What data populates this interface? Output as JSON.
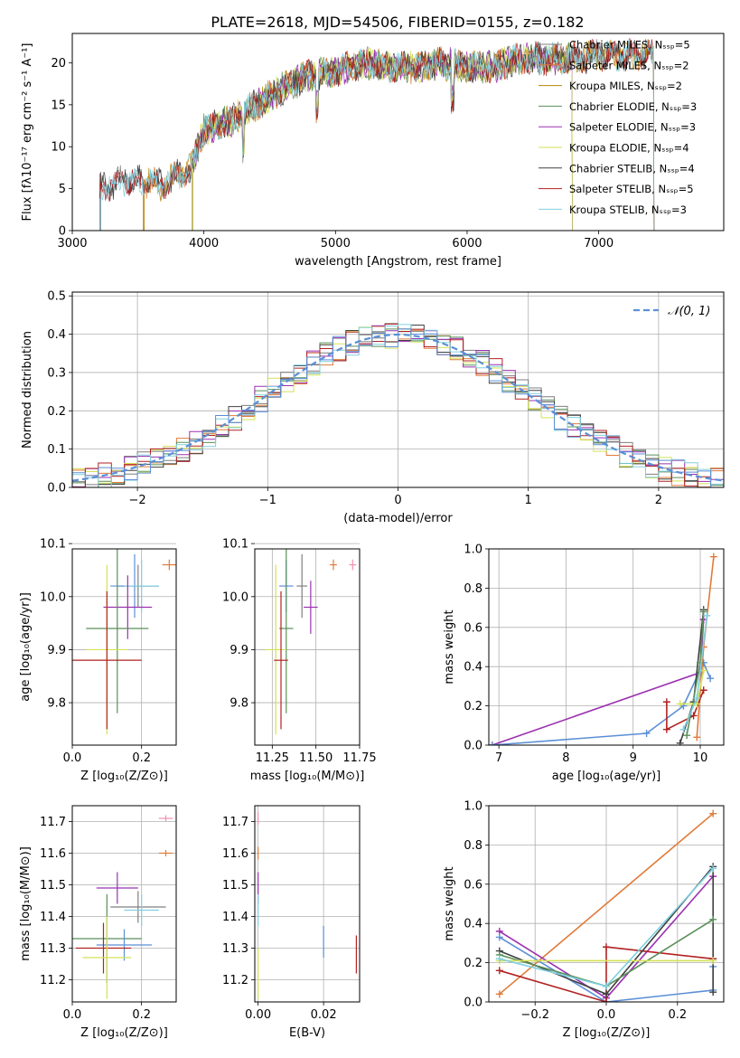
{
  "figure": {
    "title": "PLATE=2618, MJD=54506, FIBERID=0155, z=0.182"
  },
  "chart_data": [
    {
      "id": "spectrum",
      "type": "line",
      "xlabel": "wavelength [Angstrom, rest frame]",
      "ylabel": "Flux [fλ10⁻¹⁷ erg cm⁻² s⁻¹ A⁻¹]",
      "xlim": [
        3000,
        7950
      ],
      "ylim": [
        0,
        23.5
      ],
      "xticks": [
        3000,
        4000,
        5000,
        6000,
        7000
      ],
      "yticks": [
        0,
        5,
        10,
        15,
        20
      ],
      "legend_position": "right",
      "series": [
        {
          "name": "Chabrier MILES, Nₛₛₚ=5",
          "color": "#7f7f7f",
          "x_start": 3210,
          "x_end": 7420
        },
        {
          "name": "Salpeter MILES, Nₛₛₚ=2",
          "color": "#e07b39",
          "x_start": 3540,
          "x_end": 7420
        },
        {
          "name": "Kroupa MILES, Nₛₛₚ=2",
          "color": "#b8860b",
          "x_start": 3540,
          "x_end": 7420
        },
        {
          "name": "Chabrier ELODIE, Nₛₛₚ=3",
          "color": "#5a8f5a",
          "x_start": 3910,
          "x_end": 6800
        },
        {
          "name": "Salpeter ELODIE, Nₛₛₚ=3",
          "color": "#9b30b0",
          "x_start": 3910,
          "x_end": 6800
        },
        {
          "name": "Kroupa ELODIE, Nₛₛₚ=4",
          "color": "#d4e157",
          "x_start": 3910,
          "x_end": 6800
        },
        {
          "name": "Chabrier STELIB, Nₛₛₚ=4",
          "color": "#404040",
          "x_start": 3210,
          "x_end": 7420
        },
        {
          "name": "Salpeter STELIB, Nₛₛₚ=5",
          "color": "#b22222",
          "x_start": 3210,
          "x_end": 7420
        },
        {
          "name": "Kroupa STELIB, Nₛₛₚ=3",
          "color": "#80d0e0",
          "x_start": 3210,
          "x_end": 7420
        }
      ],
      "continuum": [
        [
          3210,
          5
        ],
        [
          3400,
          6
        ],
        [
          3700,
          5.5
        ],
        [
          3900,
          7.5
        ],
        [
          4000,
          12
        ],
        [
          4200,
          13
        ],
        [
          4400,
          15
        ],
        [
          4600,
          17
        ],
        [
          4800,
          18.5
        ],
        [
          5000,
          19
        ],
        [
          5200,
          20
        ],
        [
          5400,
          19.5
        ],
        [
          5600,
          19.5
        ],
        [
          5800,
          20
        ],
        [
          6000,
          19.5
        ],
        [
          6200,
          19.5
        ],
        [
          6400,
          20.5
        ],
        [
          6600,
          20.5
        ],
        [
          6800,
          20.5
        ],
        [
          7000,
          21
        ],
        [
          7200,
          21
        ],
        [
          7420,
          21
        ]
      ]
    },
    {
      "id": "residuals",
      "type": "histogram",
      "xlabel": "(data-model)/error",
      "ylabel": "Normed distribution",
      "xlim": [
        -2.5,
        2.5
      ],
      "ylim": [
        0,
        0.51
      ],
      "xticks": [
        -2,
        -1,
        0,
        1,
        2
      ],
      "yticks": [
        0.0,
        0.1,
        0.2,
        0.3,
        0.4,
        0.5
      ],
      "legend": [
        {
          "name": "𝒩(0, 1)",
          "style": "dashed",
          "color": "#5b8fd6"
        }
      ],
      "legend_position": "top-right",
      "grid": true,
      "bin_width": 0.1
    },
    {
      "id": "age_vs_Z",
      "type": "errorbar",
      "xlabel": "Z [log₁₀(Z/Z⊙)]",
      "ylabel": "age  [log₁₀(age/yr)]",
      "xlim": [
        0,
        0.3
      ],
      "ylim": [
        9.72,
        10.09
      ],
      "xticks": [
        0.0,
        0.2
      ],
      "yticks": [
        9.8,
        9.9,
        10.0,
        10.1
      ],
      "points": [
        {
          "color": "#e07b39",
          "x": 0.28,
          "y": 10.06,
          "xerr": 0.02,
          "yerr": 0.01
        },
        {
          "color": "#7f7f7f",
          "x": 0.19,
          "y": 10.02,
          "xerr": 0.06,
          "yerr": 0.04
        },
        {
          "color": "#5b8fd6",
          "x": 0.18,
          "y": 10.02,
          "xerr": 0.07,
          "yerr": 0.06
        },
        {
          "color": "#80d0e0",
          "x": 0.2,
          "y": 10.02,
          "xerr": 0.05,
          "yerr": 0.05
        },
        {
          "color": "#9b30b0",
          "x": 0.16,
          "y": 9.98,
          "xerr": 0.07,
          "yerr": 0.06
        },
        {
          "color": "#5a8f5a",
          "x": 0.13,
          "y": 9.94,
          "xerr": 0.09,
          "yerr": 0.16
        },
        {
          "color": "#d4e157",
          "x": 0.1,
          "y": 9.9,
          "xerr": 0.06,
          "yerr": 0.16
        },
        {
          "color": "#b22222",
          "x": 0.1,
          "y": 9.88,
          "xerr": 0.1,
          "yerr": 0.13
        }
      ]
    },
    {
      "id": "age_vs_mass",
      "type": "errorbar",
      "xlabel": "mass [log₁₀(M/M⊙)]",
      "ylabel": "",
      "xlim": [
        11.15,
        11.75
      ],
      "ylim": [
        9.72,
        10.09
      ],
      "xticks": [
        11.25,
        11.5,
        11.75
      ],
      "yticks": [
        9.8,
        9.9,
        10.0,
        10.1
      ],
      "points": [
        {
          "color": "#e07b39",
          "x": 11.6,
          "y": 10.06,
          "xerr": 0.02,
          "yerr": 0.01
        },
        {
          "color": "#f48fb1",
          "x": 11.71,
          "y": 10.06,
          "xerr": 0.02,
          "yerr": 0.01
        },
        {
          "color": "#5b8fd6",
          "x": 11.33,
          "y": 10.02,
          "xerr": 0.04,
          "yerr": 0.05
        },
        {
          "color": "#7f7f7f",
          "x": 11.42,
          "y": 10.02,
          "xerr": 0.03,
          "yerr": 0.06
        },
        {
          "color": "#9b30b0",
          "x": 11.47,
          "y": 9.98,
          "xerr": 0.04,
          "yerr": 0.05
        },
        {
          "color": "#5a8f5a",
          "x": 11.33,
          "y": 9.94,
          "xerr": 0.04,
          "yerr": 0.16
        },
        {
          "color": "#d4e157",
          "x": 11.27,
          "y": 9.9,
          "xerr": 0.06,
          "yerr": 0.16
        },
        {
          "color": "#b22222",
          "x": 11.3,
          "y": 9.88,
          "xerr": 0.04,
          "yerr": 0.13
        }
      ]
    },
    {
      "id": "weight_vs_age",
      "type": "line",
      "xlabel": "age  [log₁₀(age/yr)]",
      "ylabel": "mass weight",
      "xlim": [
        6.85,
        10.35
      ],
      "ylim": [
        0,
        1.0
      ],
      "xticks": [
        7,
        8,
        9,
        10
      ],
      "yticks": [
        0.0,
        0.2,
        0.4,
        0.6,
        0.8,
        1.0
      ],
      "series": [
        {
          "color": "#9b30b0",
          "points": [
            [
              6.9,
              0.0
            ],
            [
              10.0,
              0.37
            ],
            [
              10.05,
              0.64
            ]
          ]
        },
        {
          "color": "#5b8fd6",
          "points": [
            [
              6.9,
              0.0
            ],
            [
              9.2,
              0.06
            ],
            [
              9.75,
              0.2
            ],
            [
              10.05,
              0.42
            ],
            [
              10.15,
              0.34
            ]
          ]
        },
        {
          "color": "#e07b39",
          "points": [
            [
              9.95,
              0.04
            ],
            [
              10.05,
              0.5
            ],
            [
              10.2,
              0.96
            ]
          ]
        },
        {
          "color": "#b22222",
          "points": [
            [
              9.5,
              0.22
            ],
            [
              9.5,
              0.08
            ],
            [
              9.9,
              0.15
            ],
            [
              10.05,
              0.28
            ]
          ]
        },
        {
          "color": "#404040",
          "points": [
            [
              9.7,
              0.01
            ],
            [
              9.9,
              0.22
            ],
            [
              10.05,
              0.69
            ]
          ]
        },
        {
          "color": "#5a8f5a",
          "points": [
            [
              9.8,
              0.05
            ],
            [
              10.0,
              0.42
            ],
            [
              10.05,
              0.68
            ]
          ]
        },
        {
          "color": "#d4e157",
          "points": [
            [
              9.7,
              0.21
            ],
            [
              9.95,
              0.21
            ],
            [
              10.05,
              0.38
            ]
          ]
        },
        {
          "color": "#80d0e0",
          "points": [
            [
              9.75,
              0.08
            ],
            [
              9.95,
              0.24
            ],
            [
              10.1,
              0.66
            ]
          ]
        }
      ]
    },
    {
      "id": "mass_vs_Z",
      "type": "errorbar",
      "xlabel": "Z [log₁₀(Z/Z⊙)]",
      "ylabel": "mass [log₁₀(M/M⊙)]",
      "xlim": [
        0,
        0.3
      ],
      "ylim": [
        11.13,
        11.75
      ],
      "xticks": [
        0.0,
        0.2
      ],
      "yticks": [
        11.2,
        11.3,
        11.4,
        11.5,
        11.6,
        11.7
      ],
      "points": [
        {
          "color": "#f48fb1",
          "x": 0.27,
          "y": 11.71,
          "xerr": 0.02,
          "yerr": 0.01
        },
        {
          "color": "#e07b39",
          "x": 0.27,
          "y": 11.6,
          "xerr": 0.02,
          "yerr": 0.01
        },
        {
          "color": "#9b30b0",
          "x": 0.13,
          "y": 11.49,
          "xerr": 0.06,
          "yerr": 0.05
        },
        {
          "color": "#7f7f7f",
          "x": 0.19,
          "y": 11.43,
          "xerr": 0.08,
          "yerr": 0.05
        },
        {
          "color": "#80d0e0",
          "x": 0.2,
          "y": 11.42,
          "xerr": 0.05,
          "yerr": 0.05
        },
        {
          "color": "#5a8f5a",
          "x": 0.1,
          "y": 11.33,
          "xerr": 0.1,
          "yerr": 0.14
        },
        {
          "color": "#5b8fd6",
          "x": 0.15,
          "y": 11.31,
          "xerr": 0.08,
          "yerr": 0.05
        },
        {
          "color": "#b22222",
          "x": 0.09,
          "y": 11.3,
          "xerr": 0.08,
          "yerr": 0.08
        },
        {
          "color": "#d4e157",
          "x": 0.1,
          "y": 11.27,
          "xerr": 0.07,
          "yerr": 0.13
        }
      ]
    },
    {
      "id": "mass_vs_EBV",
      "type": "errorbar",
      "xlabel": "E(B-V)",
      "ylabel": "",
      "xlim": [
        -0.001,
        0.031
      ],
      "ylim": [
        11.13,
        11.75
      ],
      "xticks": [
        0.0,
        0.02
      ],
      "yticks": [
        11.2,
        11.3,
        11.4,
        11.5,
        11.6,
        11.7
      ],
      "points": [
        {
          "color": "#f48fb1",
          "x": 0.0,
          "y": 11.71,
          "xerr": 0,
          "yerr": 0.02
        },
        {
          "color": "#e07b39",
          "x": 0.0,
          "y": 11.6,
          "xerr": 0,
          "yerr": 0.02
        },
        {
          "color": "#9b30b0",
          "x": 0.0,
          "y": 11.49,
          "xerr": 0,
          "yerr": 0.05
        },
        {
          "color": "#80d0e0",
          "x": 0.0,
          "y": 11.42,
          "xerr": 0,
          "yerr": 0.05
        },
        {
          "color": "#5b8fd6",
          "x": 0.02,
          "y": 11.32,
          "xerr": 0,
          "yerr": 0.05
        },
        {
          "color": "#b22222",
          "x": 0.03,
          "y": 11.28,
          "xerr": 0,
          "yerr": 0.06
        },
        {
          "color": "#d4e157",
          "x": 0.0,
          "y": 11.22,
          "xerr": 0,
          "yerr": 0.08
        }
      ]
    },
    {
      "id": "weight_vs_Z",
      "type": "line",
      "xlabel": "Z [log₁₀(Z/Z⊙)]",
      "ylabel": "mass weight",
      "xlim": [
        -0.33,
        0.33
      ],
      "ylim": [
        0,
        1.0
      ],
      "xticks": [
        -0.2,
        0.0,
        0.2
      ],
      "yticks": [
        0.0,
        0.2,
        0.4,
        0.6,
        0.8,
        1.0
      ],
      "series": [
        {
          "color": "#e07b39",
          "points": [
            [
              -0.3,
              0.04
            ],
            [
              0.3,
              0.96
            ]
          ]
        },
        {
          "color": "#9b30b0",
          "points": [
            [
              -0.3,
              0.36
            ],
            [
              0.0,
              0.02
            ],
            [
              0.3,
              0.64
            ]
          ]
        },
        {
          "color": "#5b8fd6",
          "points": [
            [
              -0.3,
              0.33
            ],
            [
              0.0,
              0.0
            ],
            [
              0.3,
              0.06
            ],
            [
              0.3,
              0.18
            ]
          ]
        },
        {
          "color": "#b22222",
          "points": [
            [
              -0.3,
              0.16
            ],
            [
              0.0,
              0.0
            ],
            [
              0.0,
              0.28
            ],
            [
              0.3,
              0.22
            ]
          ]
        },
        {
          "color": "#404040",
          "points": [
            [
              -0.3,
              0.26
            ],
            [
              0.0,
              0.04
            ],
            [
              0.3,
              0.69
            ],
            [
              0.3,
              0.05
            ]
          ]
        },
        {
          "color": "#5a8f5a",
          "points": [
            [
              -0.3,
              0.24
            ],
            [
              0.0,
              0.08
            ],
            [
              0.3,
              0.42
            ]
          ]
        },
        {
          "color": "#d4e157",
          "points": [
            [
              -0.3,
              0.21
            ],
            [
              0.3,
              0.21
            ]
          ]
        },
        {
          "color": "#80d0e0",
          "points": [
            [
              -0.3,
              0.22
            ],
            [
              0.0,
              0.08
            ],
            [
              0.3,
              0.68
            ]
          ]
        }
      ]
    }
  ]
}
